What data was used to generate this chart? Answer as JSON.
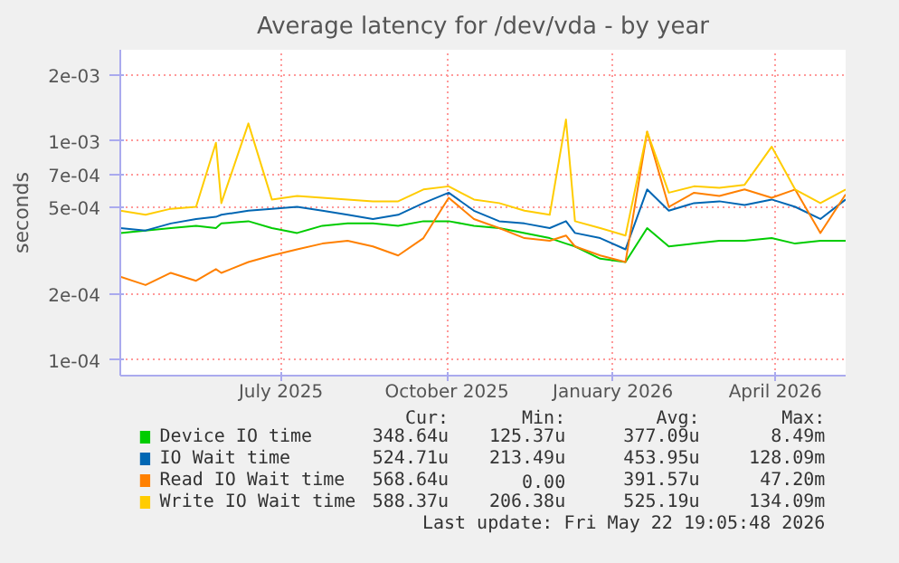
{
  "chart_data": {
    "type": "line",
    "title": "Average latency for /dev/vda - by year",
    "ylabel": "seconds",
    "log": true,
    "grid": true,
    "legend": "bottom",
    "marker": "none",
    "line_style": "solid",
    "x": [
      "2025-04-03",
      "2025-04-17",
      "2025-05-01",
      "2025-05-15",
      "2025-05-26",
      "2025-05-29",
      "2025-06-13",
      "2025-06-26",
      "2025-07-10",
      "2025-07-24",
      "2025-08-07",
      "2025-08-21",
      "2025-09-04",
      "2025-09-18",
      "2025-10-02",
      "2025-10-16",
      "2025-10-30",
      "2025-11-13",
      "2025-11-27",
      "2025-12-06",
      "2025-12-11",
      "2025-12-25",
      "2026-01-08",
      "2026-01-20",
      "2026-02-01",
      "2026-02-15",
      "2026-03-01",
      "2026-03-15",
      "2026-03-30",
      "2026-04-12",
      "2026-04-26",
      "2026-05-10"
    ],
    "xlim": [
      "2025-04-03",
      "2026-05-10"
    ],
    "xticks": [
      {
        "value": "2025-07-01",
        "label": "July 2025"
      },
      {
        "value": "2025-10-01",
        "label": "October 2025"
      },
      {
        "value": "2026-01-01",
        "label": "January 2026"
      },
      {
        "value": "2026-04-01",
        "label": "April 2026"
      }
    ],
    "ylim": [
      8.5e-05,
      0.0026
    ],
    "yticks": [
      {
        "value": 0.0001,
        "label": "1e-04"
      },
      {
        "value": 0.0002,
        "label": "2e-04"
      },
      {
        "value": 0.0005,
        "label": "5e-04"
      },
      {
        "value": 0.0007,
        "label": "7e-04"
      },
      {
        "value": 0.001,
        "label": "1e-03"
      },
      {
        "value": 0.002,
        "label": "2e-03"
      }
    ],
    "series": [
      {
        "name": "Device IO time",
        "color": "#00cc00",
        "values": [
          0.00038,
          0.00039,
          0.0004,
          0.00041,
          0.0004,
          0.00042,
          0.00043,
          0.0004,
          0.00038,
          0.00041,
          0.00042,
          0.00042,
          0.00041,
          0.00043,
          0.00043,
          0.00041,
          0.0004,
          0.00038,
          0.00036,
          0.00034,
          0.00033,
          0.00029,
          0.00028,
          0.0004,
          0.00033,
          0.00034,
          0.00035,
          0.00035,
          0.00036,
          0.00034,
          0.00035,
          0.00035
        ]
      },
      {
        "name": "IO Wait time",
        "color": "#0066b3",
        "values": [
          0.0004,
          0.00039,
          0.00042,
          0.00044,
          0.00045,
          0.00046,
          0.00048,
          0.00049,
          0.0005,
          0.00048,
          0.00046,
          0.00044,
          0.00046,
          0.00052,
          0.00058,
          0.00048,
          0.00043,
          0.00042,
          0.0004,
          0.00043,
          0.00038,
          0.00036,
          0.00032,
          0.0006,
          0.00048,
          0.00052,
          0.00053,
          0.00051,
          0.00054,
          0.0005,
          0.00044,
          0.00054
        ]
      },
      {
        "name": "Read IO Wait time",
        "color": "#ff8000",
        "values": [
          0.00024,
          0.00022,
          0.00025,
          0.00023,
          0.00026,
          0.00025,
          0.00028,
          0.0003,
          0.00032,
          0.00034,
          0.00035,
          0.00033,
          0.0003,
          0.00036,
          0.00055,
          0.00044,
          0.0004,
          0.00036,
          0.00035,
          0.00037,
          0.00033,
          0.0003,
          0.00028,
          0.0011,
          0.0005,
          0.00058,
          0.00056,
          0.0006,
          0.00055,
          0.0006,
          0.00038,
          0.00057
        ]
      },
      {
        "name": "Write IO Wait time",
        "color": "#ffcc00",
        "values": [
          0.00048,
          0.00046,
          0.00049,
          0.0005,
          0.00098,
          0.00052,
          0.0012,
          0.00054,
          0.00056,
          0.00055,
          0.00054,
          0.00053,
          0.00053,
          0.0006,
          0.00062,
          0.00054,
          0.00052,
          0.00048,
          0.00046,
          0.00125,
          0.00043,
          0.0004,
          0.00037,
          0.0011,
          0.00058,
          0.00062,
          0.00061,
          0.00063,
          0.00094,
          0.0006,
          0.00052,
          0.0006
        ]
      }
    ],
    "annotations": [
      "Cur:",
      "Min:",
      "Avg:",
      "Max:",
      "348.64u",
      "125.37u",
      "377.09u",
      "8.49m",
      "524.71u",
      "213.49u",
      "453.95u",
      "128.09m",
      "568.64u",
      "0.00",
      "391.57u",
      "47.20m",
      "588.37u",
      "206.38u",
      "525.19u",
      "134.09m",
      "Last update: Fri May 22 19:05:48 2026"
    ]
  }
}
